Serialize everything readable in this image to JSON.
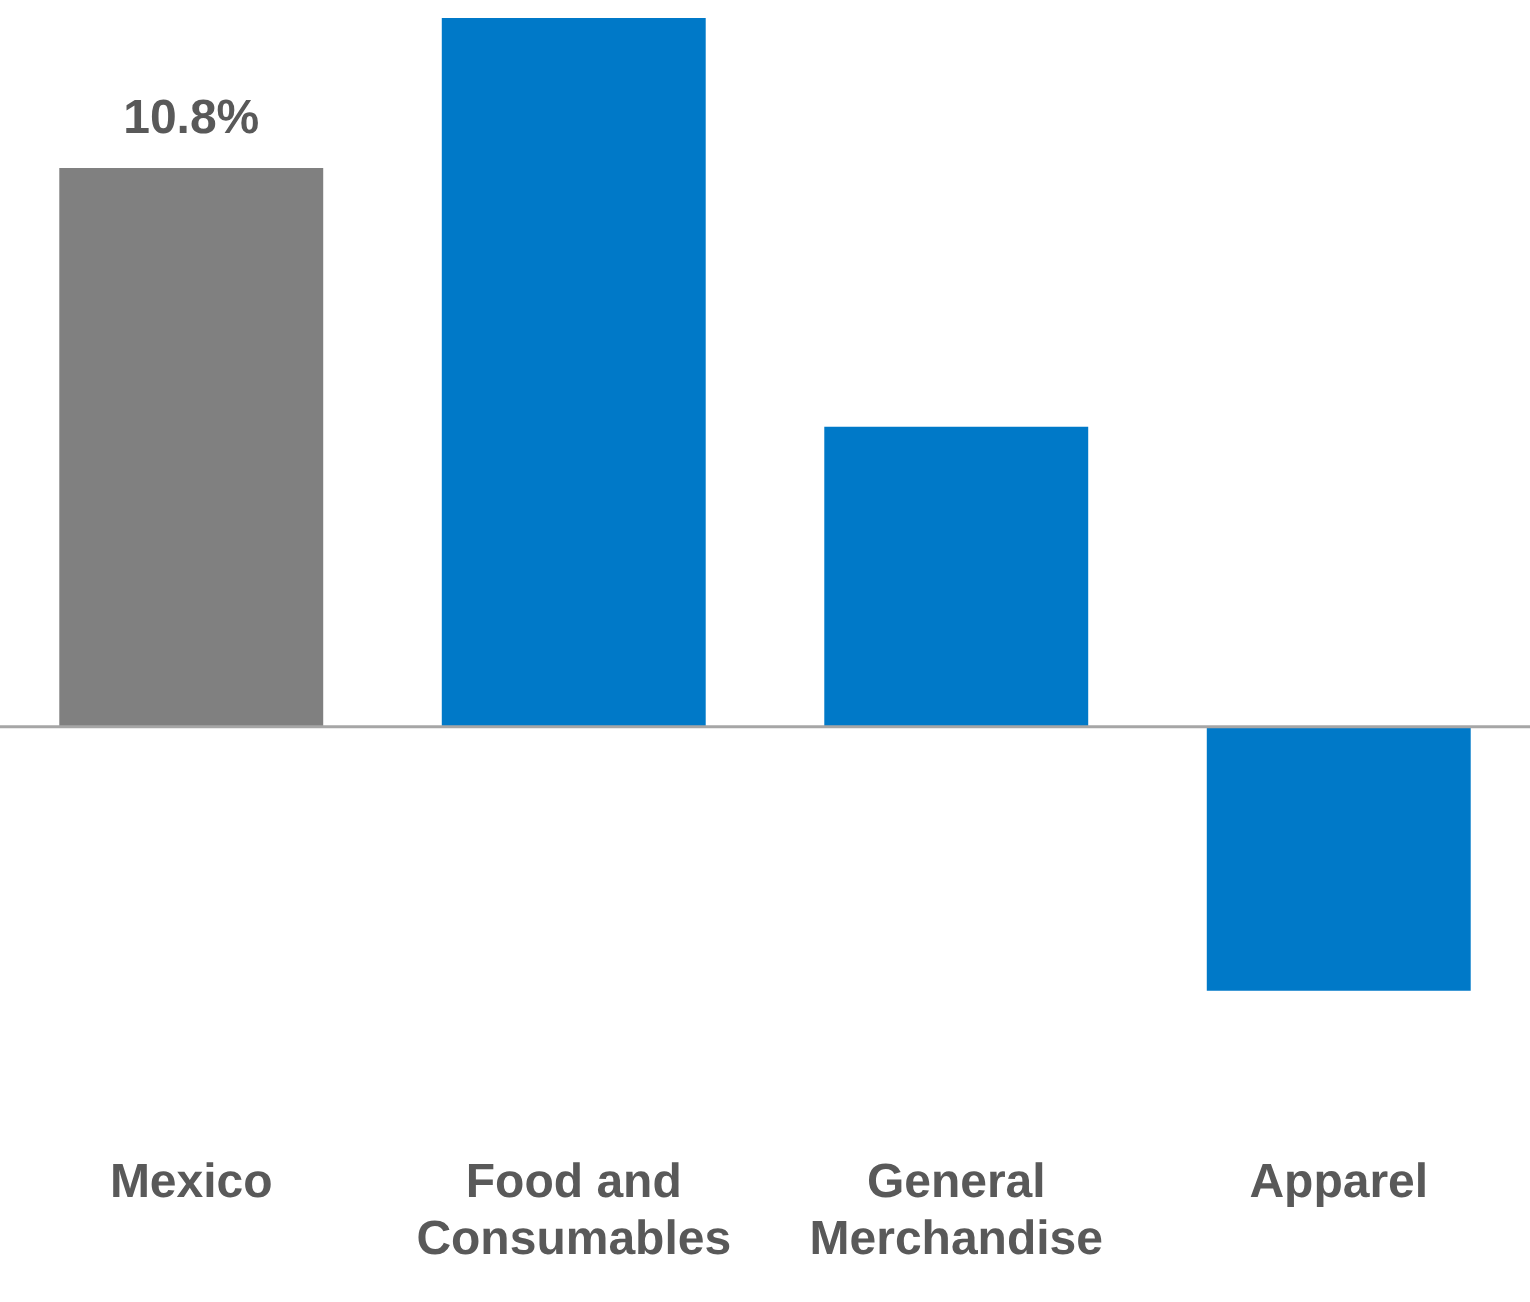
{
  "chart_data": {
    "type": "bar",
    "categories": [
      "Mexico",
      "Food and Consumables",
      "General Merchandise",
      "Apparel"
    ],
    "values": [
      10.8,
      13.7,
      5.8,
      -5.1
    ],
    "colors": [
      "#808080",
      "#0079c8",
      "#0079c8",
      "#0079c8"
    ],
    "value_labels": [
      "10.8%",
      null,
      null,
      null
    ],
    "grid": false,
    "legend": false
  }
}
